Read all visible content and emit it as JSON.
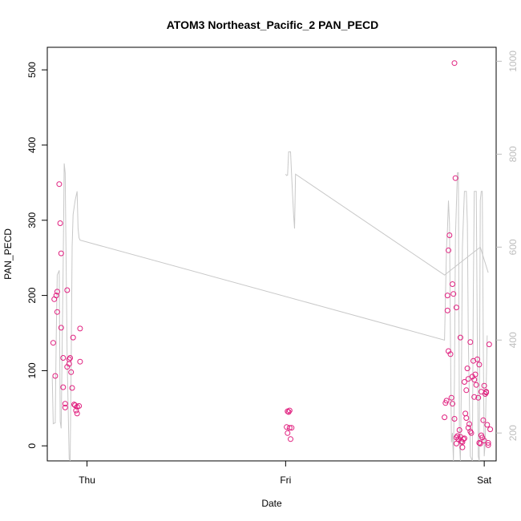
{
  "chart_data": {
    "type": "scatter",
    "title": "ATOM3 Northeast_Pacific_2 PAN_PECD",
    "xlabel": "Date",
    "ylabel": "PAN_PECD",
    "x_ticks": [
      "Thu",
      "Fri",
      "Sat"
    ],
    "x_range_days": [
      -0.2,
      2.06
    ],
    "ylim": [
      -20,
      530
    ],
    "y_ticks": [
      0,
      100,
      200,
      300,
      400,
      500
    ],
    "secondary_axis": {
      "ticks": [
        200,
        400,
        600,
        800,
        1000
      ],
      "range": [
        1030,
        140
      ],
      "inverted": true,
      "color": "#c8c8c8"
    },
    "point_color": "#e0207f",
    "line_color": "#c8c8c8",
    "points": [
      [
        -0.17,
        137
      ],
      [
        -0.165,
        195
      ],
      [
        -0.16,
        93
      ],
      [
        -0.155,
        200
      ],
      [
        -0.15,
        205
      ],
      [
        -0.15,
        178
      ],
      [
        -0.14,
        348
      ],
      [
        -0.135,
        296
      ],
      [
        -0.13,
        256
      ],
      [
        -0.13,
        157
      ],
      [
        -0.12,
        117
      ],
      [
        -0.12,
        78
      ],
      [
        -0.11,
        56
      ],
      [
        -0.11,
        51
      ],
      [
        -0.1,
        207
      ],
      [
        -0.1,
        105
      ],
      [
        -0.09,
        115
      ],
      [
        -0.09,
        109
      ],
      [
        -0.085,
        117
      ],
      [
        -0.08,
        98
      ],
      [
        -0.075,
        77
      ],
      [
        -0.07,
        144
      ],
      [
        -0.065,
        55
      ],
      [
        -0.06,
        54
      ],
      [
        -0.055,
        47
      ],
      [
        -0.05,
        43
      ],
      [
        -0.05,
        52
      ],
      [
        -0.04,
        53
      ],
      [
        -0.035,
        156
      ],
      [
        -0.035,
        112
      ],
      [
        1.01,
        46
      ],
      [
        1.015,
        45
      ],
      [
        1.02,
        47
      ],
      [
        1.005,
        25
      ],
      [
        1.01,
        17
      ],
      [
        1.02,
        24
      ],
      [
        1.03,
        24
      ],
      [
        1.025,
        9
      ],
      [
        1.8,
        38
      ],
      [
        1.805,
        57
      ],
      [
        1.81,
        60
      ],
      [
        1.815,
        200
      ],
      [
        1.815,
        180
      ],
      [
        1.82,
        126
      ],
      [
        1.82,
        260
      ],
      [
        1.825,
        280
      ],
      [
        1.83,
        122
      ],
      [
        1.835,
        64
      ],
      [
        1.84,
        56
      ],
      [
        1.84,
        215
      ],
      [
        1.845,
        202
      ],
      [
        1.85,
        36
      ],
      [
        1.85,
        509
      ],
      [
        1.855,
        356
      ],
      [
        1.86,
        184
      ],
      [
        1.86,
        3
      ],
      [
        1.865,
        13
      ],
      [
        1.87,
        9
      ],
      [
        1.875,
        21
      ],
      [
        1.88,
        144
      ],
      [
        1.885,
        6
      ],
      [
        1.89,
        -2
      ],
      [
        1.895,
        9
      ],
      [
        1.9,
        10
      ],
      [
        1.9,
        85
      ],
      [
        1.905,
        43
      ],
      [
        1.91,
        74
      ],
      [
        1.91,
        37
      ],
      [
        1.915,
        103
      ],
      [
        1.92,
        89
      ],
      [
        1.92,
        24
      ],
      [
        1.925,
        29
      ],
      [
        1.93,
        138
      ],
      [
        1.93,
        19
      ],
      [
        1.935,
        17
      ],
      [
        1.94,
        92
      ],
      [
        1.945,
        113
      ],
      [
        1.95,
        65
      ],
      [
        1.95,
        88
      ],
      [
        1.955,
        95
      ],
      [
        1.96,
        81
      ],
      [
        1.965,
        115
      ],
      [
        1.97,
        64
      ],
      [
        1.975,
        108
      ],
      [
        1.975,
        4
      ],
      [
        1.98,
        3
      ],
      [
        1.985,
        72
      ],
      [
        1.985,
        14
      ],
      [
        1.99,
        11
      ],
      [
        1.995,
        34
      ],
      [
        2.0,
        7
      ],
      [
        2.0,
        80
      ],
      [
        2.005,
        69
      ],
      [
        2.01,
        72
      ],
      [
        2.01,
        71
      ],
      [
        2.015,
        28
      ],
      [
        2.02,
        4
      ],
      [
        2.02,
        1
      ],
      [
        2.025,
        135
      ],
      [
        2.03,
        22
      ],
      [
        1.89,
        5
      ],
      [
        1.86,
        11
      ],
      [
        1.88,
        12
      ]
    ],
    "pressure_line": [
      [
        -0.175,
        320
      ],
      [
        -0.17,
        220
      ],
      [
        -0.16,
        222
      ],
      [
        -0.155,
        410
      ],
      [
        -0.15,
        540
      ],
      [
        -0.14,
        550
      ],
      [
        -0.135,
        225
      ],
      [
        -0.13,
        210
      ],
      [
        -0.12,
        560
      ],
      [
        -0.115,
        780
      ],
      [
        -0.11,
        760
      ],
      [
        -0.1,
        360
      ],
      [
        -0.09,
        145
      ],
      [
        -0.085,
        140
      ],
      [
        -0.08,
        330
      ],
      [
        -0.075,
        600
      ],
      [
        -0.07,
        670
      ],
      [
        -0.06,
        700
      ],
      [
        -0.05,
        720
      ],
      [
        -0.045,
        640
      ],
      [
        -0.04,
        620
      ],
      [
        -0.035,
        615
      ],
      [
        1.8,
        400
      ],
      [
        1.81,
        600
      ],
      [
        1.815,
        640
      ],
      [
        1.82,
        700
      ],
      [
        1.825,
        650
      ],
      [
        1.83,
        400
      ],
      [
        1.835,
        180
      ],
      [
        1.84,
        200
      ],
      [
        1.845,
        140
      ],
      [
        1.85,
        320
      ],
      [
        1.855,
        620
      ],
      [
        1.86,
        690
      ],
      [
        1.865,
        760
      ],
      [
        1.87,
        760
      ],
      [
        1.875,
        180
      ],
      [
        1.88,
        140
      ],
      [
        1.885,
        300
      ],
      [
        1.89,
        600
      ],
      [
        1.9,
        720
      ],
      [
        1.91,
        720
      ],
      [
        1.915,
        650
      ],
      [
        1.92,
        400
      ],
      [
        1.93,
        150
      ],
      [
        1.94,
        140
      ],
      [
        1.945,
        500
      ],
      [
        1.95,
        720
      ],
      [
        1.96,
        720
      ],
      [
        1.965,
        400
      ],
      [
        1.97,
        150
      ],
      [
        1.975,
        140
      ],
      [
        1.98,
        700
      ],
      [
        1.985,
        720
      ],
      [
        1.99,
        720
      ],
      [
        1.995,
        400
      ],
      [
        2.0,
        150
      ],
      [
        2.005,
        180
      ],
      [
        2.01,
        300
      ],
      [
        2.015,
        410
      ]
    ],
    "pressure_line_2": [
      [
        1.0,
        757
      ],
      [
        1.005,
        754
      ],
      [
        1.01,
        755
      ],
      [
        1.015,
        805
      ],
      [
        1.025,
        805
      ],
      [
        1.03,
        755
      ],
      [
        1.04,
        670
      ],
      [
        1.045,
        640
      ],
      [
        1.05,
        757
      ],
      [
        1.8,
        540
      ],
      [
        1.86,
        560
      ],
      [
        1.92,
        580
      ],
      [
        1.98,
        600
      ],
      [
        2.02,
        545
      ]
    ]
  }
}
